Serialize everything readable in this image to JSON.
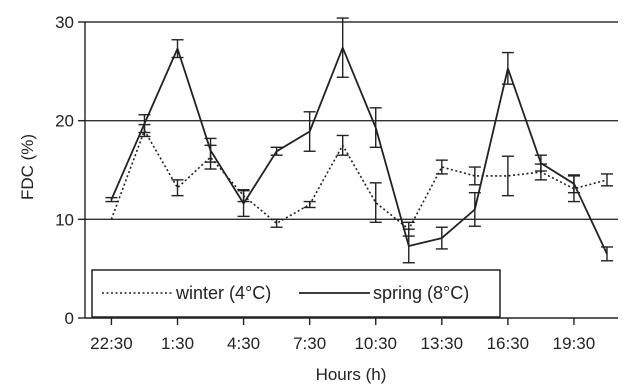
{
  "chart_data": {
    "type": "line",
    "xlabel": "Hours (h)",
    "ylabel": "FDC (%)",
    "ylim": [
      0,
      30
    ],
    "y_ticks": [
      0,
      10,
      20,
      30
    ],
    "grid": "horizontal at 10, 20, 30",
    "x_tick_labels": [
      {
        "at": 0,
        "label": "22:30"
      },
      {
        "at": 3,
        "label": "1:30"
      },
      {
        "at": 6,
        "label": "4:30"
      },
      {
        "at": 9,
        "label": "7:30"
      },
      {
        "at": 12,
        "label": "10:30"
      },
      {
        "at": 15,
        "label": "13:30"
      },
      {
        "at": 18,
        "label": "16:30"
      },
      {
        "at": 21,
        "label": "19:30"
      }
    ],
    "xlim": [
      -1.2,
      23.0
    ],
    "legend_placement": "bottom-left",
    "series": [
      {
        "name": "winter (4°C)",
        "style": "dotted",
        "color": "#222222",
        "x": [
          0,
          1.5,
          3,
          4.5,
          6,
          7.5,
          9,
          10.5,
          12,
          13.5,
          15,
          16.5,
          18,
          19.5,
          21,
          22.5
        ],
        "y": [
          10.0,
          19.0,
          13.2,
          16.3,
          12.4,
          9.6,
          11.5,
          17.5,
          11.7,
          9.0,
          15.3,
          14.4,
          14.4,
          14.8,
          13.1,
          14.0
        ],
        "err": [
          0,
          0.6,
          0.8,
          1.2,
          0.6,
          0.4,
          0.3,
          1.0,
          2.0,
          0.7,
          0.7,
          0.9,
          2.0,
          0.8,
          1.3,
          0.6
        ]
      },
      {
        "name": "spring (8°C)",
        "style": "solid",
        "color": "#222222",
        "x": [
          0,
          1.5,
          3,
          4.5,
          6,
          7.5,
          9,
          10.5,
          12,
          13.5,
          15,
          16.5,
          18,
          19.5,
          21,
          22.5
        ],
        "y": [
          12.0,
          19.7,
          27.3,
          17.0,
          11.6,
          16.9,
          18.9,
          27.4,
          19.3,
          7.3,
          8.1,
          11.0,
          25.3,
          15.7,
          13.6,
          6.5
        ],
        "err": [
          0.2,
          0.9,
          0.9,
          1.2,
          1.3,
          0.4,
          2.0,
          3.0,
          2.0,
          1.7,
          1.1,
          1.7,
          1.6,
          0.8,
          0.9,
          0.7
        ]
      }
    ]
  }
}
